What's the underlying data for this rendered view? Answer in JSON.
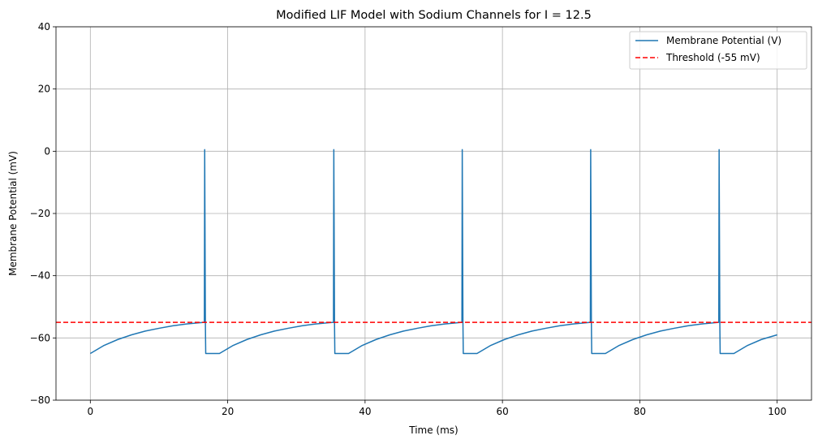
{
  "chart_data": {
    "type": "line",
    "title": "Modified LIF Model with Sodium Channels for I = 12.5",
    "xlabel": "Time (ms)",
    "ylabel": "Membrane Potential (mV)",
    "xlim": [
      -5,
      105
    ],
    "ylim": [
      -80,
      40
    ],
    "xticks": [
      0,
      20,
      40,
      60,
      80,
      100
    ],
    "yticks": [
      -80,
      -60,
      -40,
      -20,
      0,
      20,
      40
    ],
    "xtick_labels": [
      "0",
      "20",
      "40",
      "60",
      "80",
      "100"
    ],
    "ytick_labels": [
      "−80",
      "−60",
      "−40",
      "−20",
      "0",
      "20",
      "40"
    ],
    "grid": true,
    "legend_position": "top-right",
    "series": [
      {
        "name": "Membrane Potential (V)",
        "color": "#1f77b4",
        "style": "solid",
        "x": [
          0,
          2,
          4,
          6,
          8,
          10,
          12,
          14,
          16,
          16.6,
          16.65,
          16.75,
          16.8,
          18.8,
          20.8,
          22.8,
          24.8,
          26.8,
          28.8,
          30.8,
          32.8,
          34.8,
          35.4,
          35.45,
          35.55,
          35.6,
          37.6,
          39.6,
          41.6,
          43.6,
          45.6,
          47.6,
          49.6,
          51.6,
          53.6,
          54.1,
          54.15,
          54.25,
          54.3,
          56.3,
          58.3,
          60.3,
          62.3,
          64.3,
          66.3,
          68.3,
          70.3,
          72.3,
          72.8,
          72.85,
          72.95,
          73.0,
          75.0,
          77.0,
          79.0,
          81.0,
          83.0,
          85.0,
          87.0,
          89.0,
          91.0,
          91.5,
          91.55,
          91.65,
          91.7,
          93.7,
          95.7,
          97.7,
          100
        ],
        "y": [
          -65,
          -62.4,
          -60.5,
          -59.0,
          -57.8,
          -56.9,
          -56.1,
          -55.5,
          -55.1,
          -55.0,
          0.5,
          -55.0,
          -65,
          -65,
          -62.4,
          -60.5,
          -59.0,
          -57.8,
          -56.9,
          -56.1,
          -55.5,
          -55.1,
          -55.0,
          0.5,
          -55.0,
          -65,
          -65,
          -62.4,
          -60.5,
          -59.0,
          -57.8,
          -56.9,
          -56.1,
          -55.5,
          -55.1,
          -55.0,
          0.5,
          -55.0,
          -65,
          -65,
          -62.4,
          -60.5,
          -59.0,
          -57.8,
          -56.9,
          -56.1,
          -55.5,
          -55.1,
          -55.0,
          0.5,
          -55.0,
          -65,
          -65,
          -62.4,
          -60.5,
          -59.0,
          -57.8,
          -56.9,
          -56.1,
          -55.5,
          -55.1,
          -55.0,
          0.5,
          -55.0,
          -65,
          -65,
          -62.4,
          -60.5,
          -59.0
        ]
      },
      {
        "name": "Threshold (-55 mV)",
        "color": "#ff0000",
        "style": "dashed",
        "x": [
          -5,
          105
        ],
        "y": [
          -55,
          -55
        ]
      }
    ]
  }
}
